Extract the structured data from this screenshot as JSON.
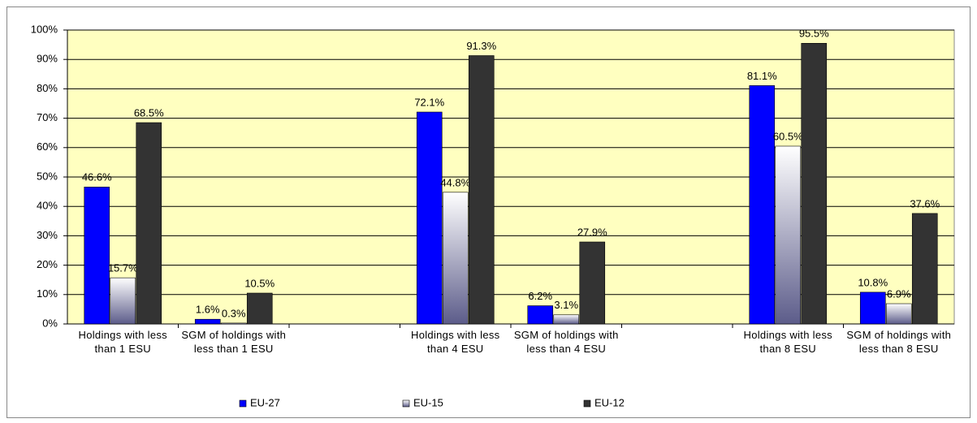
{
  "chart_data": {
    "type": "bar",
    "categories": [
      "Holdings with less than 1 ESU",
      "SGM of holdings with less than 1 ESU",
      null,
      "Holdings with less than 4 ESU",
      "SGM of holdings with less than 4 ESU",
      null,
      "Holdings with less than 8 ESU",
      "SGM of holdings with less than 8 ESU"
    ],
    "series": [
      {
        "name": "EU-27",
        "color": "#0000ff",
        "values": [
          46.6,
          1.6,
          null,
          72.1,
          6.2,
          null,
          81.1,
          10.8
        ],
        "value_labels": [
          "46.6%",
          "1.6%",
          null,
          "72.1%",
          "6.2%",
          null,
          "81.1%",
          "10.8%"
        ]
      },
      {
        "name": "EU-15",
        "color": "#5c5c8a",
        "gradient": true,
        "values": [
          15.7,
          0.3,
          null,
          44.8,
          3.1,
          null,
          60.5,
          6.9
        ],
        "value_labels": [
          "15.7%",
          "0.3%",
          null,
          "44.8%",
          "3.1%",
          null,
          "60.5%",
          "6.9%"
        ]
      },
      {
        "name": "EU-12",
        "color": "#333333",
        "values": [
          68.5,
          10.5,
          null,
          91.3,
          27.9,
          null,
          95.5,
          37.6
        ],
        "value_labels": [
          "68.5%",
          "10.5%",
          null,
          "91.3%",
          "27.9%",
          null,
          "95.5%",
          "37.6%"
        ]
      }
    ],
    "ylim": [
      0,
      100
    ],
    "yticks": [
      {
        "value": 0,
        "label": "0%"
      },
      {
        "value": 10,
        "label": "10%"
      },
      {
        "value": 20,
        "label": "20%"
      },
      {
        "value": 30,
        "label": "30%"
      },
      {
        "value": 40,
        "label": "40%"
      },
      {
        "value": 50,
        "label": "50%"
      },
      {
        "value": 60,
        "label": "60%"
      },
      {
        "value": 70,
        "label": "70%"
      },
      {
        "value": 80,
        "label": "80%"
      },
      {
        "value": 90,
        "label": "90%"
      },
      {
        "value": 100,
        "label": "100%"
      }
    ],
    "grid": true,
    "legend": "bottom",
    "plot_background": "#ffffc0"
  }
}
